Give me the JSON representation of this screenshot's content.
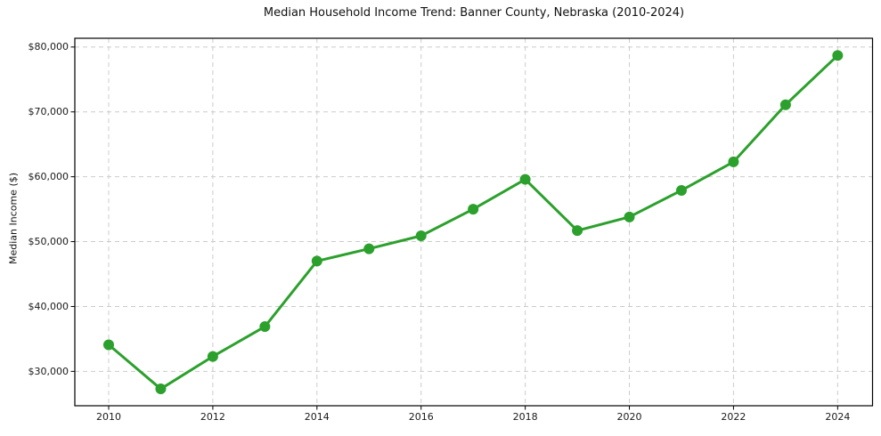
{
  "figure": {
    "background": "#ffffff",
    "frame_color": "#000000",
    "grid_color": "#cccccc",
    "tick_color": "#000000",
    "text_color": "#1a1a1a"
  },
  "chart_data": {
    "type": "line",
    "title": "Median Household Income Trend: Banner County, Nebraska (2010-2024)",
    "xlabel": "",
    "ylabel": "Median Income ($)",
    "x": [
      2010,
      2011,
      2012,
      2013,
      2014,
      2015,
      2016,
      2017,
      2018,
      2019,
      2020,
      2021,
      2022,
      2023,
      2024
    ],
    "series": [
      {
        "name": "Median Household Income",
        "values": [
          34100,
          27300,
          32300,
          36900,
          47000,
          48900,
          50900,
          55000,
          59600,
          51700,
          53800,
          57900,
          62300,
          71100,
          78700
        ],
        "color": "#2ca02c",
        "marker": "circle",
        "marker_radius": 6,
        "line_width": 3
      }
    ],
    "x_ticks": [
      2010,
      2012,
      2014,
      2016,
      2018,
      2020,
      2022,
      2024
    ],
    "x_tick_labels": [
      "2010",
      "2012",
      "2014",
      "2016",
      "2018",
      "2020",
      "2022",
      "2024"
    ],
    "y_ticks": [
      30000,
      40000,
      50000,
      60000,
      70000,
      80000
    ],
    "y_tick_labels": [
      "$30,000",
      "$40,000",
      "$50,000",
      "$60,000",
      "$70,000",
      "$80,000"
    ],
    "xlim": [
      2009.35,
      2024.67
    ],
    "ylim": [
      24700,
      81350
    ],
    "grid": true,
    "grid_style": "dashed",
    "legend": "none"
  }
}
